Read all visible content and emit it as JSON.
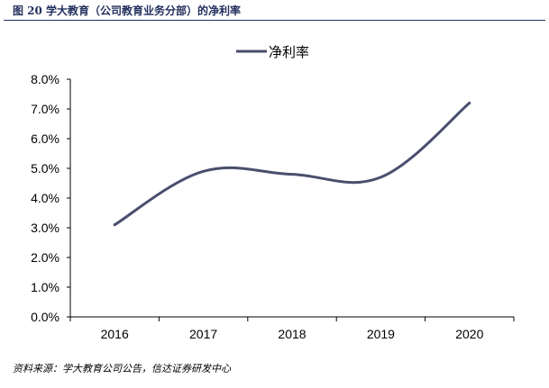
{
  "figure": {
    "title": "图 20   学大教育（公司教育业务分部）的净利率",
    "source": "资料来源：学大教育公司公告，信达证券研发中心"
  },
  "colors": {
    "header": "#23305e",
    "line": "#4a4e6e",
    "axis": "#000000"
  },
  "chart_data": {
    "type": "line",
    "categories": [
      "2016",
      "2017",
      "2018",
      "2019",
      "2020"
    ],
    "series": [
      {
        "name": "净利率",
        "values": [
          3.1,
          4.9,
          4.8,
          4.7,
          7.2
        ]
      }
    ],
    "ylim": [
      0,
      8
    ],
    "yticks": [
      "0.0%",
      "1.0%",
      "2.0%",
      "3.0%",
      "4.0%",
      "5.0%",
      "6.0%",
      "7.0%",
      "8.0%"
    ],
    "legend_position": "top-center",
    "smooth": true,
    "grid": false
  }
}
